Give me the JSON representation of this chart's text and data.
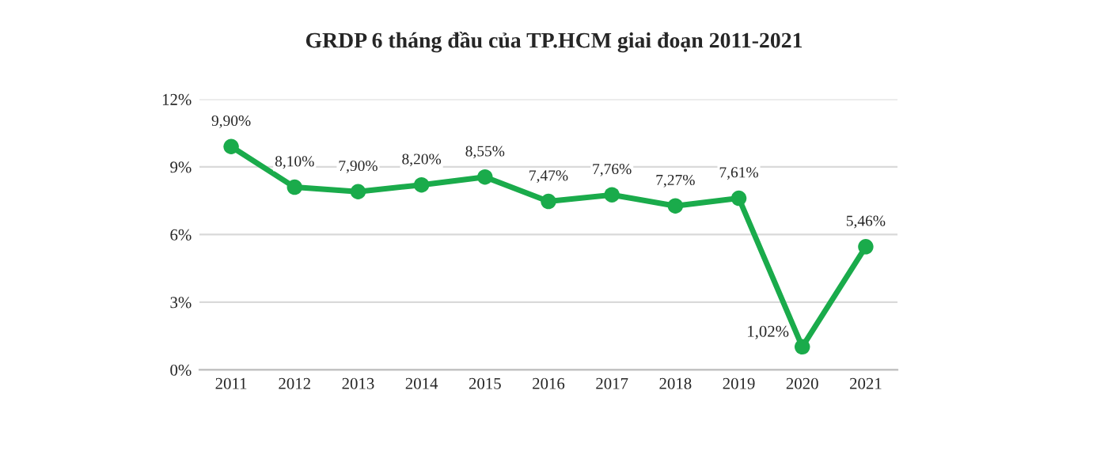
{
  "chart_data": {
    "type": "line",
    "title": "GRDP 6 tháng đầu của TP.HCM giai đoạn 2011-2021",
    "categories": [
      "2011",
      "2012",
      "2013",
      "2014",
      "2015",
      "2016",
      "2017",
      "2018",
      "2019",
      "2020",
      "2021"
    ],
    "series": [
      {
        "color": "#1aab4b",
        "values": [
          9.9,
          8.1,
          7.9,
          8.2,
          8.55,
          7.47,
          7.76,
          7.27,
          7.61,
          1.02,
          5.46
        ],
        "value_labels": [
          "9,90%",
          "8,10%",
          "7,90%",
          "8,20%",
          "8,55%",
          "7,47%",
          "7,76%",
          "7,27%",
          "7,61%",
          "1,02%",
          "5,46%"
        ]
      }
    ],
    "ylim": [
      0,
      12
    ],
    "yticks": [
      {
        "value": 0,
        "label": "0%"
      },
      {
        "value": 3,
        "label": "3%"
      },
      {
        "value": 6,
        "label": "6%"
      },
      {
        "value": 9,
        "label": "9%"
      },
      {
        "value": 12,
        "label": "12%"
      }
    ],
    "grid": "y",
    "marker": "circle",
    "line_style": "solid",
    "legend": false
  }
}
